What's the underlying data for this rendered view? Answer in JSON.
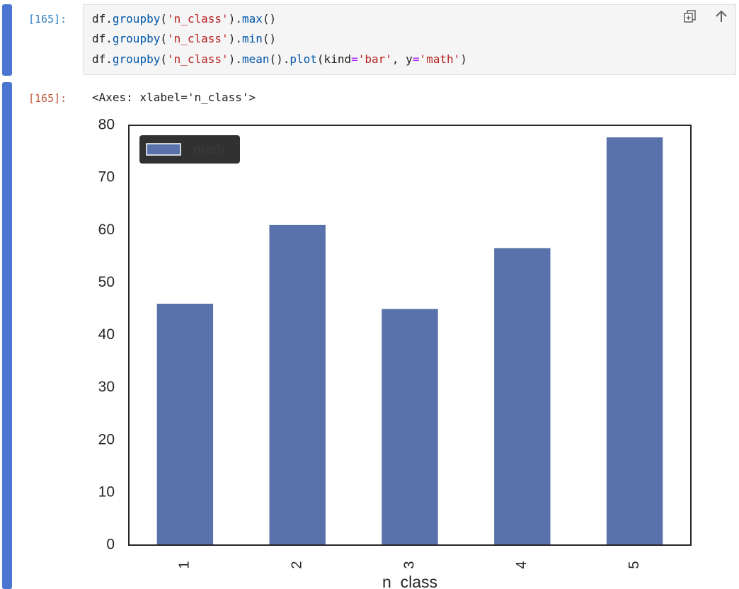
{
  "input_cell": {
    "prompt": "[165]:",
    "lines": [
      [
        {
          "t": "df.",
          "c": ""
        },
        {
          "t": "groupby",
          "c": "fn"
        },
        {
          "t": "(",
          "c": ""
        },
        {
          "t": "'n_class'",
          "c": "str"
        },
        {
          "t": ").",
          "c": ""
        },
        {
          "t": "max",
          "c": "fn"
        },
        {
          "t": "()",
          "c": ""
        }
      ],
      [
        {
          "t": "df.",
          "c": ""
        },
        {
          "t": "groupby",
          "c": "fn"
        },
        {
          "t": "(",
          "c": ""
        },
        {
          "t": "'n_class'",
          "c": "str"
        },
        {
          "t": ").",
          "c": ""
        },
        {
          "t": "min",
          "c": "fn"
        },
        {
          "t": "()",
          "c": ""
        }
      ],
      [
        {
          "t": "df.",
          "c": ""
        },
        {
          "t": "groupby",
          "c": "fn"
        },
        {
          "t": "(",
          "c": ""
        },
        {
          "t": "'n_class'",
          "c": "str"
        },
        {
          "t": ").",
          "c": ""
        },
        {
          "t": "mean",
          "c": "fn"
        },
        {
          "t": "().",
          "c": ""
        },
        {
          "t": "plot",
          "c": "fn"
        },
        {
          "t": "(kind",
          "c": ""
        },
        {
          "t": "=",
          "c": "op"
        },
        {
          "t": "'bar'",
          "c": "str"
        },
        {
          "t": ", y",
          "c": ""
        },
        {
          "t": "=",
          "c": "op"
        },
        {
          "t": "'math'",
          "c": "str"
        },
        {
          "t": ")",
          "c": ""
        }
      ]
    ],
    "icons": [
      "copy-icon",
      "arrow-up-icon"
    ]
  },
  "output_cell": {
    "prompt": "[165]:",
    "text": "<Axes: xlabel='n_class'>"
  },
  "colors": {
    "bar": "#5a72ab",
    "cell_bar": "#4a76d1",
    "legend_bg": "#262626"
  },
  "chart_data": {
    "type": "bar",
    "categories": [
      "1",
      "2",
      "3",
      "4",
      "5"
    ],
    "series": [
      {
        "name": "math",
        "values": [
          46,
          61,
          45,
          56.6,
          77.7
        ]
      }
    ],
    "title": "",
    "xlabel": "n_class",
    "ylabel": "",
    "ylim": [
      0,
      80
    ],
    "yticks": [
      0,
      10,
      20,
      30,
      40,
      50,
      60,
      70,
      80
    ],
    "legend": "top-left",
    "grid": false
  }
}
